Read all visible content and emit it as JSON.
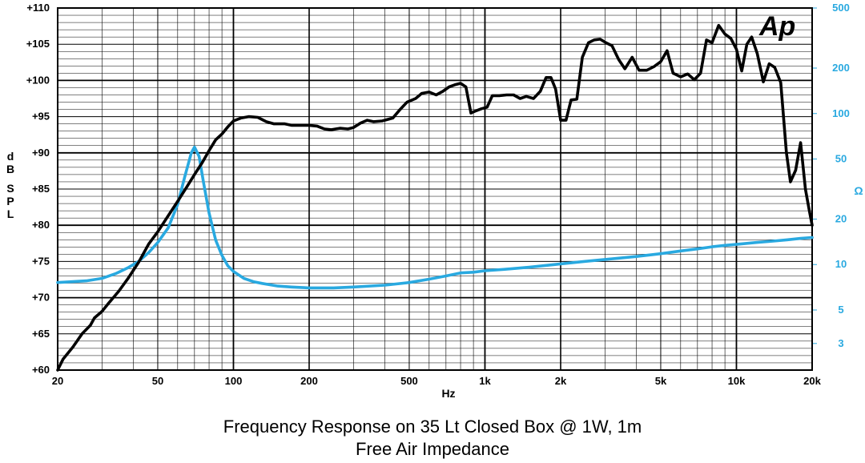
{
  "colors": {
    "spl": "#000000",
    "impedance": "#29a9e0",
    "right_axis_text": "#29a9e0",
    "grid": "#000000"
  },
  "logo": {
    "text": "Ap"
  },
  "caption": {
    "line1": "Frequency Response on 35 Lt Closed Box @ 1W, 1m",
    "line2": "Free Air Impedance"
  },
  "chart_data": {
    "type": "line",
    "x_scale": "log",
    "xlim": [
      20,
      20000
    ],
    "xlabel": "Hz",
    "x_ticks": [
      {
        "v": 20,
        "label": "20"
      },
      {
        "v": 50,
        "label": "50"
      },
      {
        "v": 100,
        "label": "100"
      },
      {
        "v": 200,
        "label": "200"
      },
      {
        "v": 500,
        "label": "500"
      },
      {
        "v": 1000,
        "label": "1k"
      },
      {
        "v": 2000,
        "label": "2k"
      },
      {
        "v": 5000,
        "label": "5k"
      },
      {
        "v": 10000,
        "label": "10k"
      },
      {
        "v": 20000,
        "label": "20k"
      }
    ],
    "ylabel_left": [
      "d",
      "B",
      "",
      "S",
      "P",
      "L"
    ],
    "ylim_left": [
      60,
      110
    ],
    "y_ticks_left": [
      {
        "v": 60,
        "label": "+60"
      },
      {
        "v": 65,
        "label": "+65"
      },
      {
        "v": 70,
        "label": "+70"
      },
      {
        "v": 75,
        "label": "+75"
      },
      {
        "v": 80,
        "label": "+80"
      },
      {
        "v": 85,
        "label": "+85"
      },
      {
        "v": 90,
        "label": "+90"
      },
      {
        "v": 95,
        "label": "+95"
      },
      {
        "v": 100,
        "label": "+100"
      },
      {
        "v": 105,
        "label": "+105"
      },
      {
        "v": 110,
        "label": "+110"
      }
    ],
    "ylabel_right": "Ω",
    "y_scale_right": "log",
    "ylim_right": [
      2,
      500
    ],
    "y_ticks_right": [
      {
        "v": 3,
        "label": "3"
      },
      {
        "v": 5,
        "label": "5"
      },
      {
        "v": 10,
        "label": "10"
      },
      {
        "v": 20,
        "label": "20"
      },
      {
        "v": 50,
        "label": "50"
      },
      {
        "v": 100,
        "label": "100"
      },
      {
        "v": 200,
        "label": "200"
      },
      {
        "v": 500,
        "label": "500"
      }
    ],
    "grid": true,
    "series": [
      {
        "axis": "left",
        "points": [
          [
            20,
            60
          ],
          [
            21,
            61.5
          ],
          [
            23,
            63.2
          ],
          [
            25,
            65
          ],
          [
            27,
            66.2
          ],
          [
            28,
            67.2
          ],
          [
            30,
            68.1
          ],
          [
            32,
            69.3
          ],
          [
            35,
            70.9
          ],
          [
            38,
            72.6
          ],
          [
            42,
            74.9
          ],
          [
            46,
            77.4
          ],
          [
            50,
            79.1
          ],
          [
            55,
            81.3
          ],
          [
            60,
            83.3
          ],
          [
            65,
            85.2
          ],
          [
            70,
            87.0
          ],
          [
            75,
            88.6
          ],
          [
            80,
            90.3
          ],
          [
            85,
            91.8
          ],
          [
            90,
            92.6
          ],
          [
            95,
            93.6
          ],
          [
            100,
            94.4
          ],
          [
            107,
            94.8
          ],
          [
            115,
            95.0
          ],
          [
            125,
            94.9
          ],
          [
            135,
            94.3
          ],
          [
            145,
            94.0
          ],
          [
            160,
            94.0
          ],
          [
            170,
            93.8
          ],
          [
            185,
            93.8
          ],
          [
            200,
            93.8
          ],
          [
            215,
            93.7
          ],
          [
            230,
            93.3
          ],
          [
            245,
            93.2
          ],
          [
            265,
            93.4
          ],
          [
            285,
            93.3
          ],
          [
            300,
            93.5
          ],
          [
            320,
            94.1
          ],
          [
            340,
            94.5
          ],
          [
            360,
            94.3
          ],
          [
            390,
            94.4
          ],
          [
            430,
            94.8
          ],
          [
            460,
            96.0
          ],
          [
            490,
            97.0
          ],
          [
            530,
            97.5
          ],
          [
            560,
            98.2
          ],
          [
            600,
            98.4
          ],
          [
            640,
            98.0
          ],
          [
            680,
            98.5
          ],
          [
            720,
            99.1
          ],
          [
            760,
            99.4
          ],
          [
            800,
            99.6
          ],
          [
            840,
            99.1
          ],
          [
            880,
            95.5
          ],
          [
            920,
            95.8
          ],
          [
            970,
            96.1
          ],
          [
            1020,
            96.3
          ],
          [
            1070,
            97.9
          ],
          [
            1140,
            97.9
          ],
          [
            1220,
            98.0
          ],
          [
            1300,
            98.0
          ],
          [
            1380,
            97.5
          ],
          [
            1460,
            97.8
          ],
          [
            1560,
            97.5
          ],
          [
            1660,
            98.5
          ],
          [
            1750,
            100.4
          ],
          [
            1830,
            100.4
          ],
          [
            1910,
            98.8
          ],
          [
            2000,
            94.5
          ],
          [
            2100,
            94.5
          ],
          [
            2200,
            97.3
          ],
          [
            2320,
            97.4
          ],
          [
            2440,
            103.2
          ],
          [
            2580,
            105.2
          ],
          [
            2720,
            105.6
          ],
          [
            2870,
            105.7
          ],
          [
            3030,
            105.2
          ],
          [
            3200,
            104.8
          ],
          [
            3400,
            102.9
          ],
          [
            3600,
            101.6
          ],
          [
            3850,
            103.2
          ],
          [
            4100,
            101.4
          ],
          [
            4400,
            101.4
          ],
          [
            4700,
            101.9
          ],
          [
            5000,
            102.6
          ],
          [
            5300,
            104.1
          ],
          [
            5600,
            101.0
          ],
          [
            6000,
            100.5
          ],
          [
            6400,
            100.9
          ],
          [
            6800,
            100.1
          ],
          [
            7200,
            101.0
          ],
          [
            7600,
            105.6
          ],
          [
            8000,
            105.2
          ],
          [
            8500,
            107.6
          ],
          [
            9000,
            106.4
          ],
          [
            9500,
            105.8
          ],
          [
            10000,
            104.3
          ],
          [
            10500,
            101.3
          ],
          [
            11000,
            105.0
          ],
          [
            11500,
            106.0
          ],
          [
            12100,
            103.7
          ],
          [
            12800,
            99.8
          ],
          [
            13500,
            102.3
          ],
          [
            14200,
            101.8
          ],
          [
            15000,
            99.7
          ],
          [
            15800,
            90.0
          ],
          [
            16400,
            86.0
          ],
          [
            17200,
            87.6
          ],
          [
            18000,
            91.4
          ],
          [
            18800,
            85.0
          ],
          [
            19500,
            82.0
          ],
          [
            20000,
            80.0
          ]
        ]
      },
      {
        "axis": "right",
        "points": [
          [
            20,
            7.6
          ],
          [
            23,
            7.7
          ],
          [
            26,
            7.8
          ],
          [
            30,
            8.1
          ],
          [
            34,
            8.7
          ],
          [
            38,
            9.5
          ],
          [
            42,
            10.5
          ],
          [
            46,
            12.0
          ],
          [
            50,
            14.0
          ],
          [
            55,
            17.5
          ],
          [
            60,
            25
          ],
          [
            64,
            38
          ],
          [
            68,
            55
          ],
          [
            70,
            60
          ],
          [
            73,
            52
          ],
          [
            76,
            35
          ],
          [
            80,
            22
          ],
          [
            85,
            14.5
          ],
          [
            90,
            11.5
          ],
          [
            95,
            9.8
          ],
          [
            100,
            9.0
          ],
          [
            110,
            8.1
          ],
          [
            120,
            7.7
          ],
          [
            130,
            7.5
          ],
          [
            150,
            7.2
          ],
          [
            170,
            7.1
          ],
          [
            200,
            7.0
          ],
          [
            250,
            7.0
          ],
          [
            300,
            7.1
          ],
          [
            400,
            7.3
          ],
          [
            500,
            7.6
          ],
          [
            600,
            8.0
          ],
          [
            700,
            8.4
          ],
          [
            800,
            8.8
          ],
          [
            900,
            8.9
          ],
          [
            1000,
            9.1
          ],
          [
            1200,
            9.3
          ],
          [
            1500,
            9.6
          ],
          [
            2000,
            10.1
          ],
          [
            2500,
            10.5
          ],
          [
            3000,
            10.8
          ],
          [
            4000,
            11.3
          ],
          [
            5000,
            11.8
          ],
          [
            6000,
            12.3
          ],
          [
            7000,
            12.7
          ],
          [
            8000,
            13.1
          ],
          [
            9000,
            13.4
          ],
          [
            10000,
            13.6
          ],
          [
            12000,
            14.0
          ],
          [
            14000,
            14.3
          ],
          [
            16000,
            14.6
          ],
          [
            18000,
            14.9
          ],
          [
            20000,
            15.1
          ]
        ]
      }
    ]
  }
}
